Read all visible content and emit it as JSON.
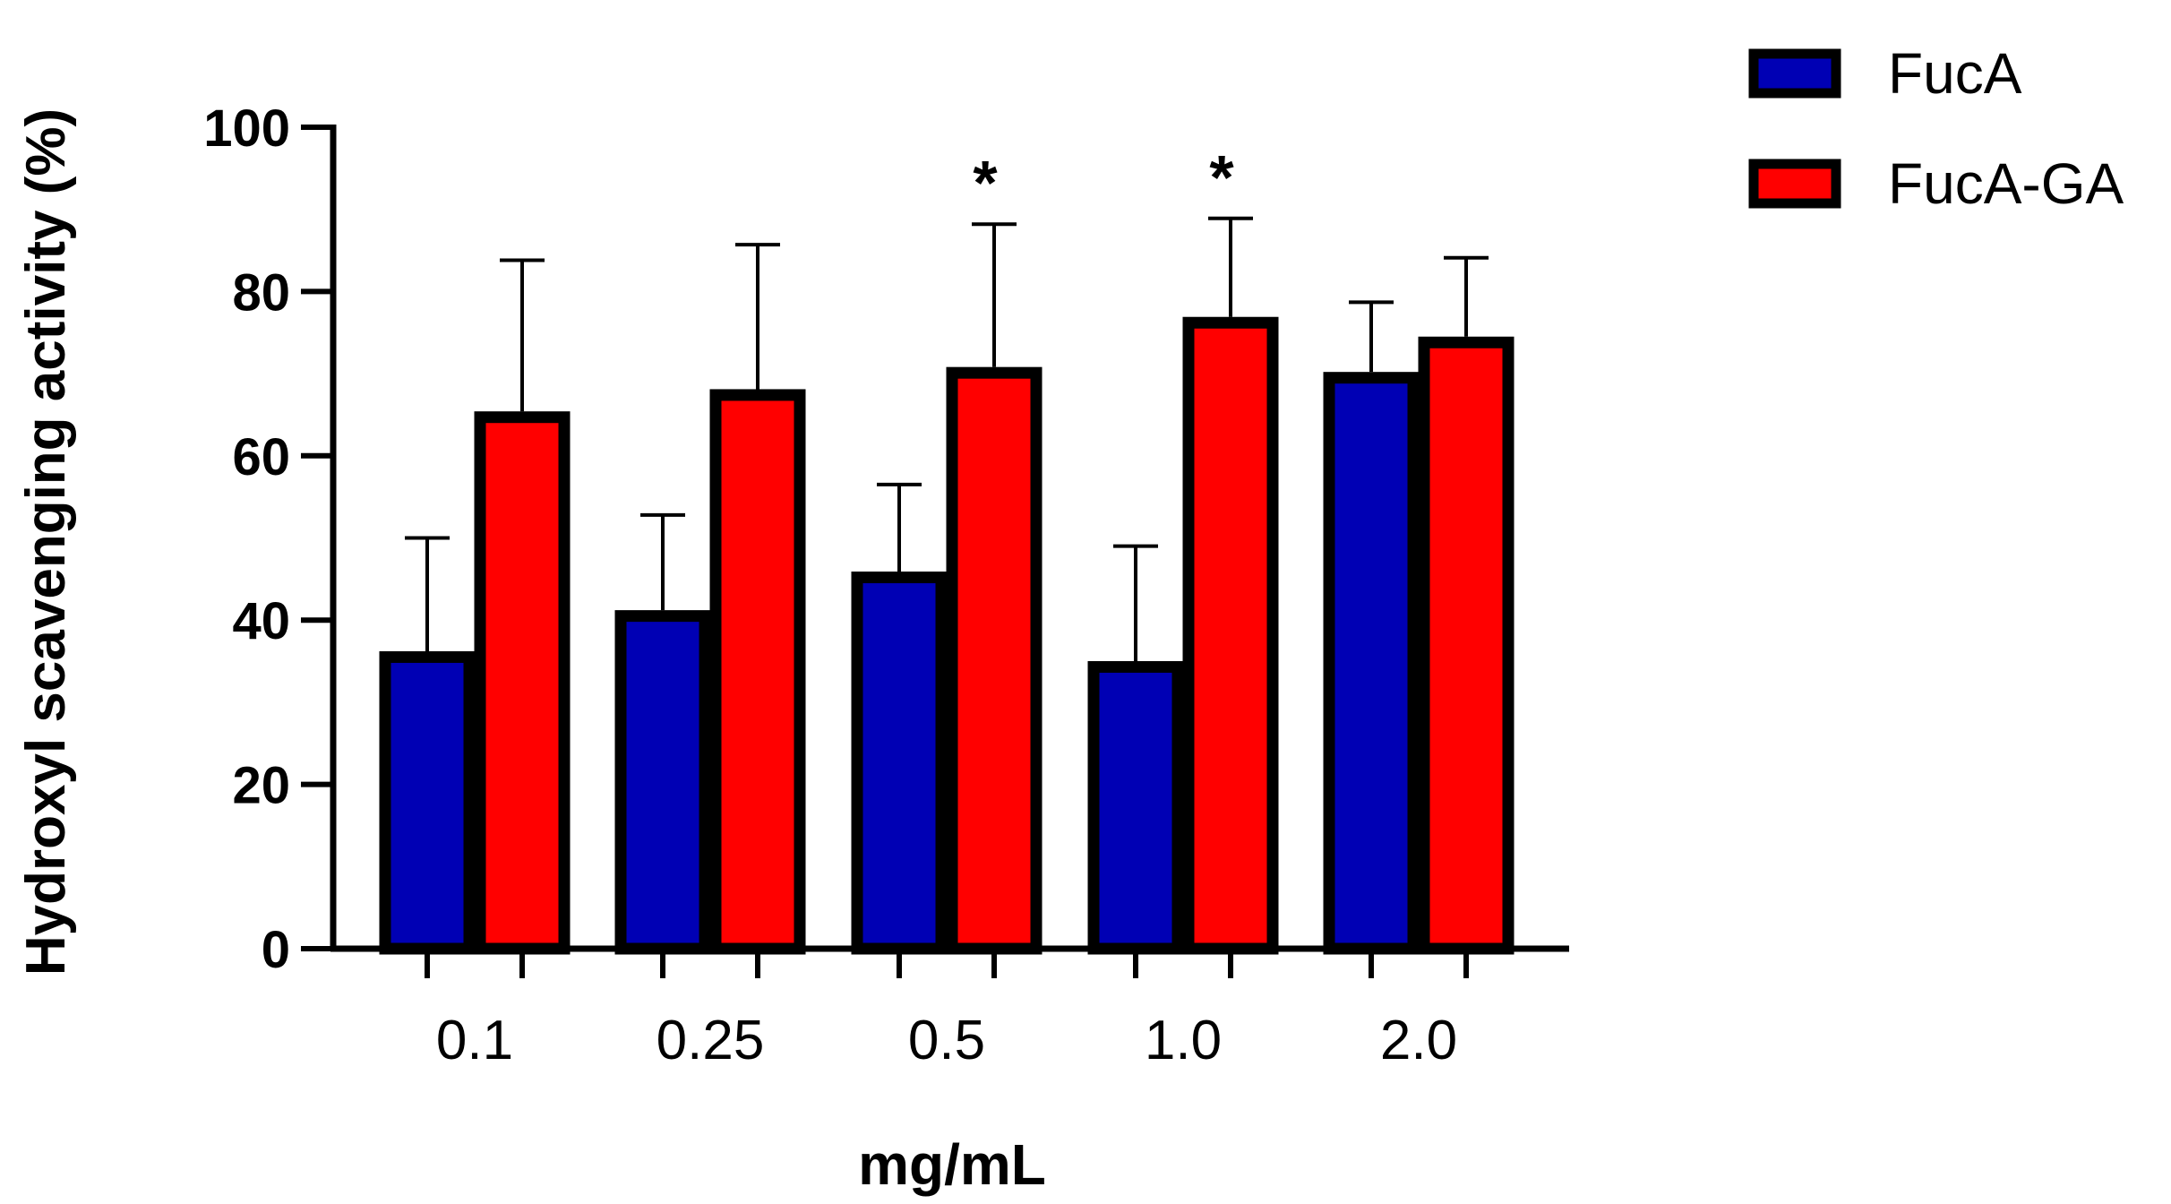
{
  "chart_data": {
    "type": "bar",
    "categories": [
      "0.1",
      "0.25",
      "0.5",
      "1.0",
      "2.0"
    ],
    "series": [
      {
        "name": "FucA",
        "color": "#0000b4",
        "values": [
          35.5,
          40.5,
          45.2,
          34.3,
          69.5
        ],
        "errors": [
          14.5,
          12.3,
          11.3,
          14.7,
          9.2
        ]
      },
      {
        "name": "FucA-GA",
        "color": "#ff0000",
        "values": [
          64.7,
          67.4,
          70.1,
          76.2,
          73.8
        ],
        "errors": [
          19.1,
          18.3,
          18.1,
          12.7,
          10.3
        ]
      }
    ],
    "significance": [
      {
        "category": "0.5",
        "series": "FucA-GA",
        "mark": "*"
      },
      {
        "category": "1.0",
        "series": "FucA-GA",
        "mark": "*"
      }
    ],
    "ylabel": "Hydroxyl scavenging activity (%)",
    "xlabel": "mg/mL",
    "ylim": [
      0,
      100
    ],
    "yticks": [
      "0",
      "20",
      "40",
      "60",
      "80",
      "100"
    ],
    "legend_position": "top-right",
    "grid": false
  }
}
